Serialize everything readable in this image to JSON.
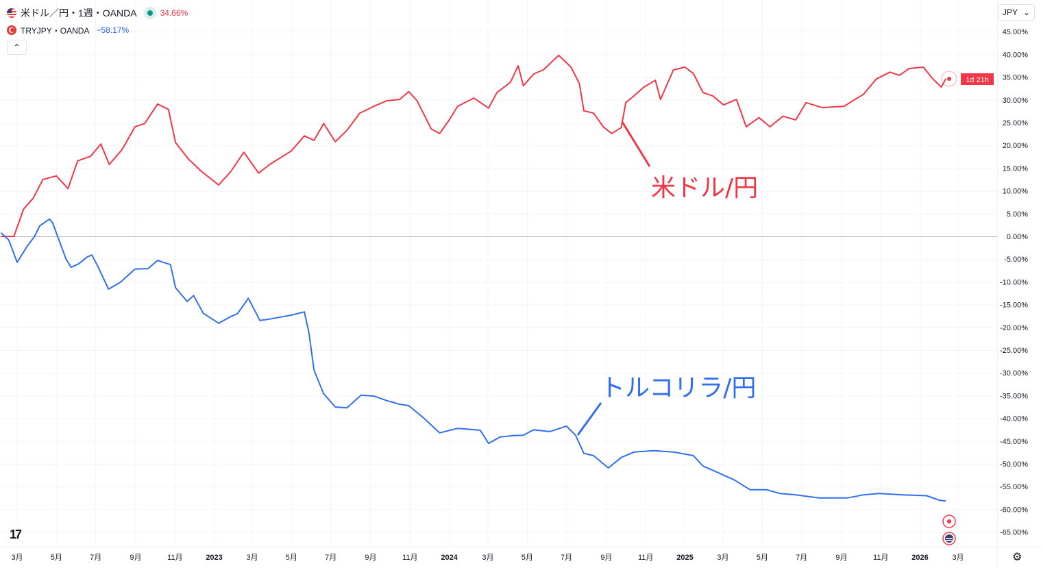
{
  "legend": {
    "main_title": "米ドル／円・1週・OANDA",
    "main_change": "34.66%",
    "compare_title": "TRYJPY・OANDA",
    "compare_change": "−58.17%",
    "collapse_icon": "chevron-up-icon"
  },
  "currency_select": {
    "value": "JPY"
  },
  "countdown_label": "1d 21h",
  "colors": {
    "usdjpy": "#f23645",
    "tryjpy": "#2f6fed",
    "grid": "#f0f3fa",
    "zero_line": "#b2b5be"
  },
  "chart_data": {
    "type": "line",
    "title": "",
    "interval": "1週",
    "y_scale": "percent",
    "ylim": [
      -68,
      48
    ],
    "grid": true,
    "y_ticks": [
      "45.00%",
      "40.00%",
      "35.00%",
      "30.00%",
      "25.00%",
      "20.00%",
      "15.00%",
      "10.00%",
      "5.00%",
      "0.00%",
      "-5.00%",
      "-10.00%",
      "-15.00%",
      "-20.00%",
      "-25.00%",
      "-30.00%",
      "-35.00%",
      "-40.00%",
      "-45.00%",
      "-50.00%",
      "-55.00%",
      "-60.00%",
      "-65.00%"
    ],
    "x_ticks": [
      {
        "label": "3月",
        "date": "2022-03-01"
      },
      {
        "label": "5月",
        "date": "2022-05-01"
      },
      {
        "label": "7月",
        "date": "2022-07-01"
      },
      {
        "label": "9月",
        "date": "2022-09-01"
      },
      {
        "label": "11月",
        "date": "2022-11-01"
      },
      {
        "label": "2023",
        "date": "2023-01-01",
        "bold": true
      },
      {
        "label": "3月",
        "date": "2023-03-01"
      },
      {
        "label": "5月",
        "date": "2023-05-01"
      },
      {
        "label": "7月",
        "date": "2023-07-01"
      },
      {
        "label": "9月",
        "date": "2023-09-01"
      },
      {
        "label": "11月",
        "date": "2023-11-01"
      },
      {
        "label": "2024",
        "date": "2024-01-01",
        "bold": true
      },
      {
        "label": "3月",
        "date": "2024-03-01"
      },
      {
        "label": "5月",
        "date": "2024-05-01"
      },
      {
        "label": "7月",
        "date": "2024-07-01"
      },
      {
        "label": "9月",
        "date": "2024-09-01"
      },
      {
        "label": "11月",
        "date": "2024-11-01"
      },
      {
        "label": "2025",
        "date": "2025-01-01",
        "bold": true
      },
      {
        "label": "3月",
        "date": "2025-03-01"
      },
      {
        "label": "5月",
        "date": "2025-05-01"
      },
      {
        "label": "7月",
        "date": "2025-07-01"
      },
      {
        "label": "9月",
        "date": "2025-09-01"
      },
      {
        "label": "11月",
        "date": "2025-11-01"
      },
      {
        "label": "2026",
        "date": "2026-01-01",
        "bold": true
      },
      {
        "label": "3月",
        "date": "2026-03-01"
      }
    ],
    "series": [
      {
        "name": "米ドル/円",
        "color": "#f23645",
        "points": [
          [
            "2022-02-04",
            0
          ],
          [
            "2022-02-24",
            0
          ],
          [
            "2022-03-11",
            6
          ],
          [
            "2022-03-26",
            8.4
          ],
          [
            "2022-04-10",
            12.5
          ],
          [
            "2022-05-01",
            13.3
          ],
          [
            "2022-05-19",
            10.5
          ],
          [
            "2022-06-03",
            16.6
          ],
          [
            "2022-06-23",
            17.6
          ],
          [
            "2022-07-09",
            20.3
          ],
          [
            "2022-07-22",
            15.8
          ],
          [
            "2022-08-11",
            19.1
          ],
          [
            "2022-08-31",
            24.1
          ],
          [
            "2022-09-15",
            24.8
          ],
          [
            "2022-10-05",
            29.1
          ],
          [
            "2022-10-22",
            27.9
          ],
          [
            "2022-11-02",
            20.6
          ],
          [
            "2022-11-22",
            17
          ],
          [
            "2022-12-12",
            14.3
          ],
          [
            "2023-01-08",
            11.3
          ],
          [
            "2023-01-27",
            14.3
          ],
          [
            "2023-02-16",
            18.5
          ],
          [
            "2023-03-11",
            13.9
          ],
          [
            "2023-03-28",
            15.8
          ],
          [
            "2023-05-01",
            18.8
          ],
          [
            "2023-05-21",
            22.1
          ],
          [
            "2023-06-05",
            21.1
          ],
          [
            "2023-06-20",
            24.8
          ],
          [
            "2023-07-08",
            20.8
          ],
          [
            "2023-07-26",
            23.3
          ],
          [
            "2023-08-15",
            27.1
          ],
          [
            "2023-09-06",
            28.6
          ],
          [
            "2023-09-26",
            29.8
          ],
          [
            "2023-10-16",
            30.1
          ],
          [
            "2023-10-30",
            31.8
          ],
          [
            "2023-11-12",
            29.8
          ],
          [
            "2023-12-04",
            23.6
          ],
          [
            "2023-12-17",
            22.6
          ],
          [
            "2024-01-01",
            25.6
          ],
          [
            "2024-01-14",
            28.6
          ],
          [
            "2024-02-08",
            30.4
          ],
          [
            "2024-03-02",
            28.2
          ],
          [
            "2024-03-15",
            31.6
          ],
          [
            "2024-04-05",
            33.9
          ],
          [
            "2024-04-17",
            37.5
          ],
          [
            "2024-04-25",
            33.1
          ],
          [
            "2024-05-11",
            35.7
          ],
          [
            "2024-05-26",
            36.6
          ],
          [
            "2024-06-19",
            39.8
          ],
          [
            "2024-07-08",
            37.2
          ],
          [
            "2024-07-21",
            33.6
          ],
          [
            "2024-07-28",
            27.6
          ],
          [
            "2024-08-12",
            27.1
          ],
          [
            "2024-08-27",
            24.1
          ],
          [
            "2024-09-09",
            22.6
          ],
          [
            "2024-09-24",
            23.9
          ],
          [
            "2024-10-01",
            29.4
          ],
          [
            "2024-10-14",
            30.9
          ],
          [
            "2024-10-29",
            32.8
          ],
          [
            "2024-11-16",
            34.3
          ],
          [
            "2024-11-24",
            30.1
          ],
          [
            "2024-12-14",
            36.6
          ],
          [
            "2025-01-01",
            37.2
          ],
          [
            "2025-01-14",
            35.8
          ],
          [
            "2025-01-29",
            31.6
          ],
          [
            "2025-02-13",
            30.9
          ],
          [
            "2025-03-02",
            28.9
          ],
          [
            "2025-03-22",
            30.1
          ],
          [
            "2025-04-06",
            24.1
          ],
          [
            "2025-04-26",
            26.1
          ],
          [
            "2025-05-13",
            24.1
          ],
          [
            "2025-06-02",
            26.4
          ],
          [
            "2025-06-22",
            25.6
          ],
          [
            "2025-07-08",
            29.4
          ],
          [
            "2025-08-02",
            28.3
          ],
          [
            "2025-09-05",
            28.6
          ],
          [
            "2025-09-22",
            30.1
          ],
          [
            "2025-10-05",
            31.2
          ],
          [
            "2025-10-25",
            34.6
          ],
          [
            "2025-11-15",
            36.1
          ],
          [
            "2025-11-30",
            35.4
          ],
          [
            "2025-12-15",
            36.9
          ],
          [
            "2026-01-06",
            37.2
          ],
          [
            "2026-01-21",
            34.6
          ],
          [
            "2026-02-03",
            32.8
          ],
          [
            "2026-02-10",
            34.66
          ]
        ]
      },
      {
        "name": "トルコリラ/円",
        "color": "#2f6fed",
        "points": [
          [
            "2022-02-04",
            0.8
          ],
          [
            "2022-02-16",
            -0.8
          ],
          [
            "2022-03-01",
            -5.7
          ],
          [
            "2022-03-16",
            -2.3
          ],
          [
            "2022-03-28",
            0
          ],
          [
            "2022-04-05",
            2.3
          ],
          [
            "2022-04-20",
            3.8
          ],
          [
            "2022-04-25",
            3
          ],
          [
            "2022-05-16",
            -5
          ],
          [
            "2022-05-24",
            -6.8
          ],
          [
            "2022-06-05",
            -6
          ],
          [
            "2022-06-18",
            -4.5
          ],
          [
            "2022-06-25",
            -4.1
          ],
          [
            "2022-07-04",
            -6.5
          ],
          [
            "2022-07-21",
            -11.6
          ],
          [
            "2022-08-08",
            -10.1
          ],
          [
            "2022-08-31",
            -7.2
          ],
          [
            "2022-09-20",
            -7.1
          ],
          [
            "2022-10-05",
            -5.3
          ],
          [
            "2022-10-25",
            -6.2
          ],
          [
            "2022-11-02",
            -11.3
          ],
          [
            "2022-11-20",
            -14.3
          ],
          [
            "2022-11-30",
            -13
          ],
          [
            "2022-12-15",
            -16.9
          ],
          [
            "2023-01-08",
            -19.1
          ],
          [
            "2023-01-27",
            -17.6
          ],
          [
            "2023-02-06",
            -17
          ],
          [
            "2023-02-23",
            -13.6
          ],
          [
            "2023-03-13",
            -18.5
          ],
          [
            "2023-03-31",
            -18.1
          ],
          [
            "2023-05-01",
            -17.3
          ],
          [
            "2023-05-21",
            -16.6
          ],
          [
            "2023-05-28",
            -21.1
          ],
          [
            "2023-06-05",
            -29.4
          ],
          [
            "2023-06-20",
            -34.6
          ],
          [
            "2023-07-08",
            -37.5
          ],
          [
            "2023-07-26",
            -37.7
          ],
          [
            "2023-08-17",
            -34.9
          ],
          [
            "2023-09-06",
            -35.1
          ],
          [
            "2023-09-26",
            -36.1
          ],
          [
            "2023-10-16",
            -36.9
          ],
          [
            "2023-10-30",
            -37.2
          ],
          [
            "2023-11-22",
            -39.9
          ],
          [
            "2023-12-17",
            -43.2
          ],
          [
            "2024-01-14",
            -42.2
          ],
          [
            "2024-02-18",
            -42.6
          ],
          [
            "2024-03-02",
            -45.5
          ],
          [
            "2024-03-20",
            -44.1
          ],
          [
            "2024-04-09",
            -43.8
          ],
          [
            "2024-04-25",
            -43.7
          ],
          [
            "2024-05-11",
            -42.5
          ],
          [
            "2024-06-05",
            -42.9
          ],
          [
            "2024-07-01",
            -41.7
          ],
          [
            "2024-07-15",
            -43.7
          ],
          [
            "2024-07-28",
            -47.7
          ],
          [
            "2024-08-12",
            -48.2
          ],
          [
            "2024-09-04",
            -50.9
          ],
          [
            "2024-09-24",
            -48.6
          ],
          [
            "2024-10-14",
            -47.4
          ],
          [
            "2024-11-14",
            -47.1
          ],
          [
            "2024-12-14",
            -47.4
          ],
          [
            "2025-01-14",
            -48.2
          ],
          [
            "2025-01-29",
            -50.5
          ],
          [
            "2025-02-13",
            -51.4
          ],
          [
            "2025-03-18",
            -53.5
          ],
          [
            "2025-04-12",
            -55.7
          ],
          [
            "2025-05-08",
            -55.7
          ],
          [
            "2025-05-28",
            -56.5
          ],
          [
            "2025-06-22",
            -56.8
          ],
          [
            "2025-07-28",
            -57.5
          ],
          [
            "2025-09-10",
            -57.5
          ],
          [
            "2025-10-05",
            -56.8
          ],
          [
            "2025-10-30",
            -56.5
          ],
          [
            "2025-12-05",
            -56.8
          ],
          [
            "2026-01-11",
            -57
          ],
          [
            "2026-01-31",
            -58
          ],
          [
            "2026-02-10",
            -58.17
          ]
        ]
      }
    ],
    "annotations": [
      {
        "text": "米ドル/円",
        "color": "#f23645"
      },
      {
        "text": "トルコリラ/円",
        "color": "#2f6fed"
      }
    ]
  }
}
